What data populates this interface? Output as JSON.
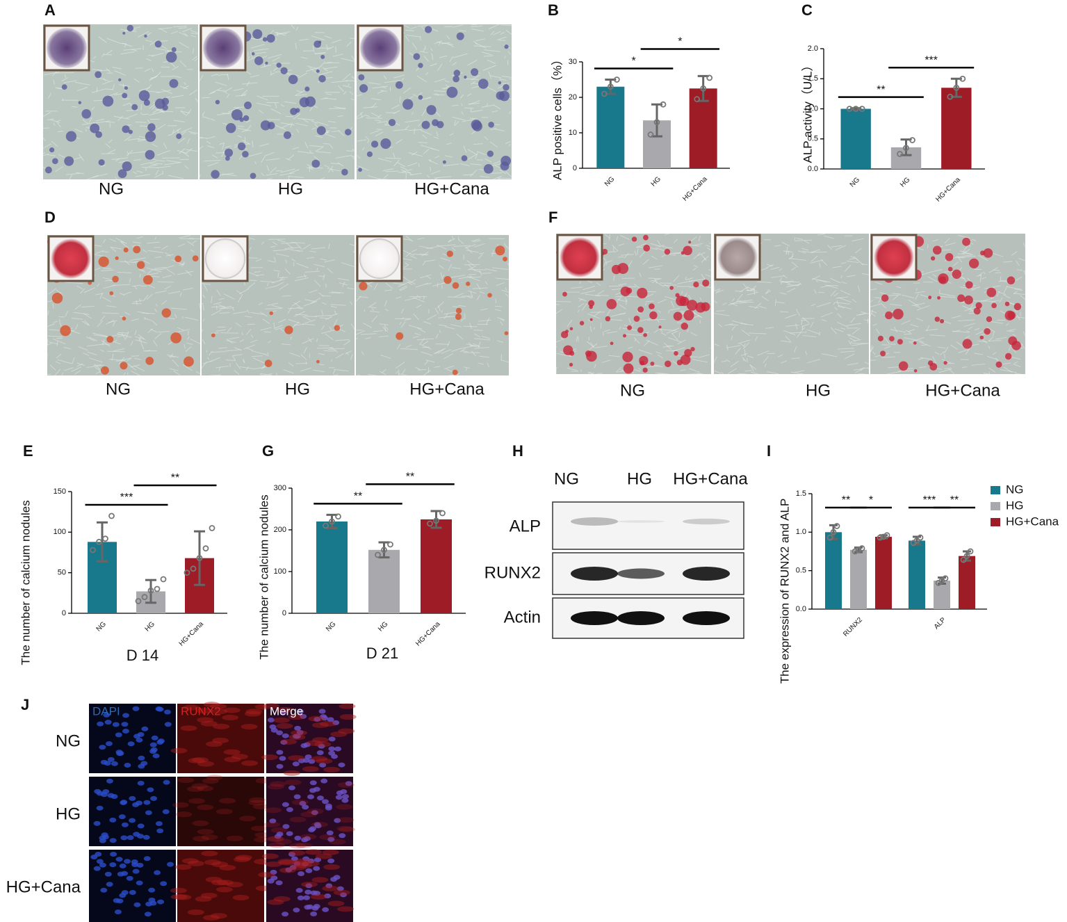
{
  "panels": {
    "A": {
      "letter": "A",
      "labels": [
        "NG",
        "HG",
        "HG+Cana"
      ]
    },
    "D": {
      "letter": "D",
      "labels": [
        "NG",
        "HG",
        "HG+Cana"
      ]
    },
    "F": {
      "letter": "F",
      "labels": [
        "NG",
        "HG",
        "HG+Cana"
      ]
    },
    "H": {
      "letter": "H",
      "lanes": [
        "NG",
        "HG",
        "HG+Cana"
      ],
      "rows": [
        "ALP",
        "RUNX2",
        "Actin"
      ]
    },
    "J": {
      "letter": "J",
      "columns": [
        "DAPI",
        "RUNX2",
        "Merge"
      ],
      "rows": [
        "NG",
        "HG",
        "HG+Cana"
      ]
    }
  },
  "chart_data": [
    {
      "letter": "B",
      "type": "bar",
      "ylabel": "ALP positive cells（%）",
      "categories": [
        "NG",
        "HG",
        "HG+Cana"
      ],
      "values": [
        23,
        13.5,
        22.5
      ],
      "errors": [
        2,
        4.5,
        3.5
      ],
      "points": [
        [
          21,
          23,
          25
        ],
        [
          9.5,
          13,
          18
        ],
        [
          19.5,
          22.5,
          25.5
        ]
      ],
      "colors": [
        "#18798c",
        "#a9a9ad",
        "#9d1c26"
      ],
      "ylim": [
        0,
        30
      ],
      "yticks": [
        0,
        10,
        20,
        30
      ],
      "annotations": [
        "*",
        "*"
      ]
    },
    {
      "letter": "C",
      "type": "bar",
      "ylabel": "ALP activity（U/L）",
      "categories": [
        "NG",
        "HG",
        "HG+Cana"
      ],
      "values": [
        1.0,
        0.36,
        1.35
      ],
      "errors": [
        0.01,
        0.13,
        0.15
      ],
      "points": [
        [
          1,
          1,
          1
        ],
        [
          0.25,
          0.35,
          0.48
        ],
        [
          1.2,
          1.35,
          1.5
        ]
      ],
      "colors": [
        "#18798c",
        "#a9a9ad",
        "#9d1c26"
      ],
      "ylim": [
        0,
        2
      ],
      "yticks": [
        {
          "value": 0,
          "label": "0.0"
        },
        {
          "value": 0.5,
          "label": "0.5"
        },
        {
          "value": 1,
          "label": "1.0"
        },
        {
          "value": 1.5,
          "label": "1.5"
        },
        {
          "value": 2,
          "label": "2.0"
        }
      ],
      "annotations": [
        "**",
        "***"
      ]
    },
    {
      "letter": "E",
      "type": "bar",
      "ylabel": "The number of calcium nodules",
      "xlabel": "D 14",
      "categories": [
        "NG",
        "HG",
        "HG+Cana"
      ],
      "values": [
        88,
        27,
        68
      ],
      "errors": [
        24,
        14,
        33
      ],
      "points": [
        [
          78,
          88,
          92,
          120
        ],
        [
          15,
          20,
          28,
          30,
          42
        ],
        [
          50,
          55,
          68,
          80,
          105
        ]
      ],
      "colors": [
        "#18798c",
        "#a9a9ad",
        "#9d1c26"
      ],
      "ylim": [
        0,
        150
      ],
      "yticks": [
        0,
        50,
        100,
        150
      ],
      "annotations": [
        "***",
        "**"
      ]
    },
    {
      "letter": "G",
      "type": "bar",
      "ylabel": "The number of calcium nodules",
      "xlabel": "D 21",
      "categories": [
        "NG",
        "HG",
        "HG+Cana"
      ],
      "values": [
        220,
        152,
        225
      ],
      "errors": [
        16,
        18,
        20
      ],
      "points": [
        [
          210,
          220,
          232
        ],
        [
          140,
          152,
          165
        ],
        [
          215,
          222,
          240
        ]
      ],
      "colors": [
        "#18798c",
        "#a9a9ad",
        "#9d1c26"
      ],
      "ylim": [
        0,
        300
      ],
      "yticks": [
        0,
        100,
        200,
        300
      ],
      "annotations": [
        "**",
        "**"
      ]
    },
    {
      "letter": "I",
      "type": "grouped_bar",
      "ylabel": "The expression of RUNX2 and ALP",
      "categories": [
        "RUNX2",
        "ALP"
      ],
      "series": [
        {
          "name": "NG",
          "color": "#18798c",
          "values": [
            1.0,
            0.89
          ],
          "errors": [
            0.09,
            0.05
          ],
          "points": [
            [
              0.93,
              1.0,
              1.08
            ],
            [
              0.86,
              0.89,
              0.93
            ]
          ]
        },
        {
          "name": "HG",
          "color": "#a9a9ad",
          "values": [
            0.77,
            0.37
          ],
          "errors": [
            0.03,
            0.04
          ],
          "points": [
            [
              0.75,
              0.77,
              0.79
            ],
            [
              0.34,
              0.37,
              0.4
            ]
          ]
        },
        {
          "name": "HG+Cana",
          "color": "#9d1c26",
          "values": [
            0.94,
            0.69
          ],
          "errors": [
            0.02,
            0.06
          ],
          "points": [
            [
              0.93,
              0.94,
              0.96
            ],
            [
              0.64,
              0.69,
              0.75
            ]
          ]
        }
      ],
      "ylim": [
        0,
        1.5
      ],
      "yticks": [
        {
          "value": 0,
          "label": "0.0"
        },
        {
          "value": 0.5,
          "label": "0.5"
        },
        {
          "value": 1,
          "label": "1.0"
        },
        {
          "value": 1.5,
          "label": "1.5"
        }
      ],
      "legend": "right",
      "annotations": [
        "**",
        "*",
        "***",
        "**"
      ]
    }
  ]
}
